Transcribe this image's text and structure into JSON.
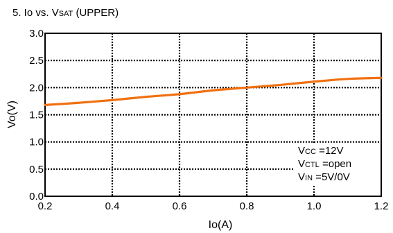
{
  "chart_data": {
    "type": "line",
    "title": "5. Io vs. VSAT (UPPER)",
    "title_parts": {
      "pre": "5. Io vs. V",
      "sub": "SAT",
      "post": " (UPPER)"
    },
    "xlabel": "Io(A)",
    "ylabel": "Vo(V)",
    "xlim": [
      0.2,
      1.2
    ],
    "ylim": [
      0.0,
      3.0
    ],
    "x_ticks": [
      0.2,
      0.4,
      0.6,
      0.8,
      1.0,
      1.2
    ],
    "x_tick_labels": [
      "0.2",
      "0.4",
      "0.6",
      "0.8",
      "1.0",
      "1.2"
    ],
    "y_ticks": [
      0.0,
      0.5,
      1.0,
      1.5,
      2.0,
      2.5,
      3.0
    ],
    "y_tick_labels": [
      "0.0",
      "0.5",
      "1.0",
      "1.5",
      "2.0",
      "2.5",
      "3.0"
    ],
    "grid": true,
    "series": [
      {
        "color": "#f07010",
        "x": [
          0.2,
          0.3,
          0.4,
          0.5,
          0.6,
          0.7,
          0.8,
          0.9,
          1.0,
          1.1,
          1.2
        ],
        "y": [
          1.68,
          1.72,
          1.77,
          1.83,
          1.88,
          1.95,
          2.0,
          2.05,
          2.11,
          2.16,
          2.18
        ]
      }
    ],
    "annotations": [
      {
        "pre": "V",
        "sub": "CC",
        "post": " =12V"
      },
      {
        "pre": "V",
        "sub": "CTL",
        "post": " =open"
      },
      {
        "pre": "V",
        "sub": "IN",
        "post": " =5V/0V"
      }
    ]
  }
}
